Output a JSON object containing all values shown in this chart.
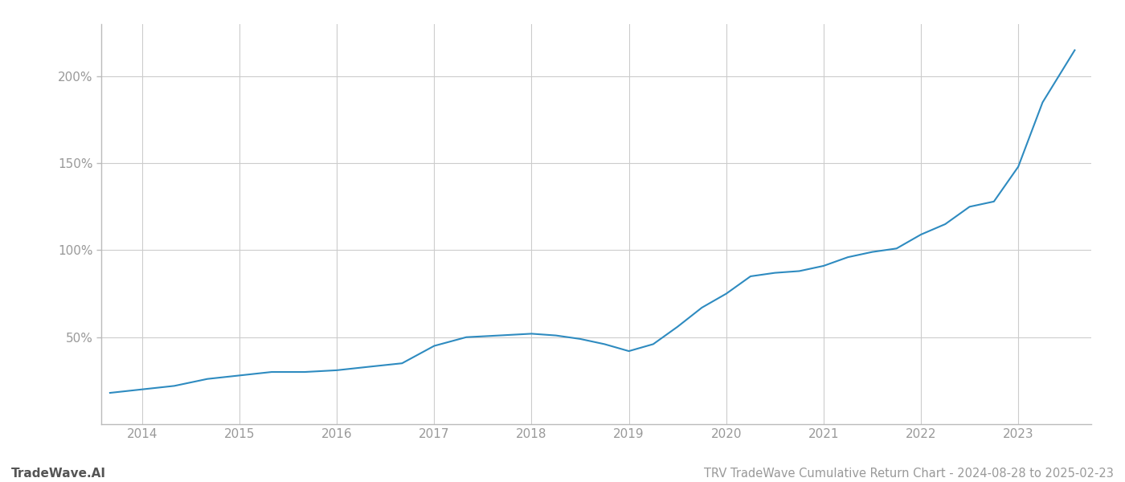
{
  "title": "TRV TradeWave Cumulative Return Chart - 2024-08-28 to 2025-02-23",
  "watermark": "TradeWave.AI",
  "line_color": "#2e8bc0",
  "background_color": "#ffffff",
  "grid_color": "#cccccc",
  "x_years": [
    2014,
    2015,
    2016,
    2017,
    2018,
    2019,
    2020,
    2021,
    2022,
    2023
  ],
  "x_data": [
    2013.67,
    2014.0,
    2014.33,
    2014.67,
    2015.0,
    2015.33,
    2015.67,
    2016.0,
    2016.33,
    2016.67,
    2017.0,
    2017.33,
    2017.67,
    2018.0,
    2018.25,
    2018.5,
    2018.75,
    2019.0,
    2019.25,
    2019.5,
    2019.75,
    2020.0,
    2020.25,
    2020.5,
    2020.75,
    2021.0,
    2021.25,
    2021.5,
    2021.75,
    2022.0,
    2022.25,
    2022.5,
    2022.75,
    2023.0,
    2023.25,
    2023.58
  ],
  "y_data": [
    18,
    20,
    22,
    26,
    28,
    30,
    30,
    31,
    33,
    35,
    45,
    50,
    51,
    52,
    51,
    49,
    46,
    42,
    46,
    56,
    67,
    75,
    85,
    87,
    88,
    91,
    96,
    99,
    101,
    109,
    115,
    125,
    128,
    148,
    185,
    215
  ],
  "ytick_values": [
    50,
    100,
    150,
    200
  ],
  "ytick_labels": [
    "50%",
    "100%",
    "150%",
    "200%"
  ],
  "ylim": [
    0,
    230
  ],
  "xlim": [
    2013.58,
    2023.75
  ],
  "line_width": 1.5,
  "title_fontsize": 10.5,
  "tick_fontsize": 11,
  "watermark_fontsize": 11,
  "axis_color": "#999999",
  "tick_color": "#999999",
  "spine_color": "#bbbbbb"
}
